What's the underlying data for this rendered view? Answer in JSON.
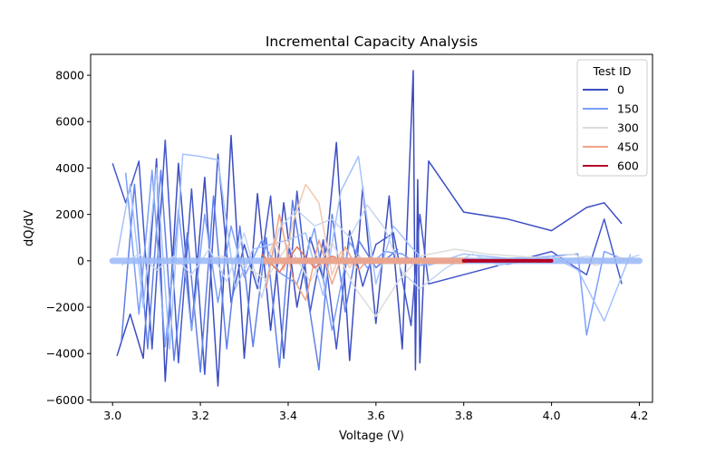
{
  "chart_data": {
    "type": "line",
    "title": "Incremental Capacity Analysis",
    "xlabel": "Voltage (V)",
    "ylabel": "dQ/dV",
    "xlim": [
      2.95,
      4.23
    ],
    "ylim": [
      -6100,
      8900
    ],
    "xticks": [
      3.0,
      3.2,
      3.4,
      3.6,
      3.8,
      4.0,
      4.2
    ],
    "xtick_labels": [
      "3.0",
      "3.2",
      "3.4",
      "3.6",
      "3.8",
      "4.0",
      "4.2"
    ],
    "yticks": [
      -6000,
      -4000,
      -2000,
      0,
      2000,
      4000,
      6000,
      8000
    ],
    "ytick_labels": [
      "−6000",
      "−4000",
      "−2000",
      "0",
      "2000",
      "4000",
      "6000",
      "8000"
    ],
    "grid": false,
    "legend": {
      "title": "Test ID",
      "placement": "top-right",
      "entries": [
        {
          "label": "0",
          "color": "#3b4cc0"
        },
        {
          "label": "150",
          "color": "#7b9ff9"
        },
        {
          "label": "300",
          "color": "#dddcdc"
        },
        {
          "label": "450",
          "color": "#f2a384"
        },
        {
          "label": "600",
          "color": "#b40426"
        }
      ]
    },
    "series": [
      {
        "color": "#3b4cc0",
        "x": [
          3.01,
          3.04,
          3.07,
          3.1,
          3.12,
          3.15,
          3.18,
          3.21,
          3.24,
          3.27,
          3.3,
          3.33,
          3.36,
          3.39,
          3.42,
          3.45,
          3.48,
          3.51,
          3.54,
          3.57,
          3.6,
          3.63,
          3.66,
          3.685,
          3.69,
          3.695,
          3.7,
          3.72,
          3.8,
          3.9,
          4.0,
          4.08,
          4.12,
          4.16
        ],
        "y": [
          -4100,
          -2300,
          -4200,
          4400,
          -5200,
          4200,
          -3000,
          3600,
          -5400,
          5400,
          -4200,
          2900,
          -3000,
          2500,
          -2000,
          1000,
          -800,
          5100,
          -4300,
          3200,
          -2700,
          2800,
          -3800,
          8200,
          -4700,
          3500,
          -4400,
          4300,
          2100,
          1800,
          1300,
          2300,
          2500,
          1600
        ]
      },
      {
        "color": "#4358cb",
        "x": [
          3.0,
          3.03,
          3.06,
          3.09,
          3.12,
          3.15,
          3.18,
          3.21,
          3.24,
          3.27,
          3.3,
          3.33,
          3.36,
          3.39,
          3.42,
          3.45,
          3.48,
          3.51,
          3.54,
          3.57,
          3.6,
          3.64,
          3.68,
          3.7,
          3.72,
          4.0,
          4.08,
          4.12,
          4.16
        ],
        "y": [
          4200,
          2500,
          4300,
          -3800,
          5200,
          -4400,
          3100,
          -4900,
          4600,
          -1800,
          700,
          -1200,
          2800,
          -4200,
          3000,
          -2200,
          900,
          -3800,
          1300,
          -1100,
          700,
          1200,
          -2800,
          2000,
          -1000,
          400,
          -600,
          1800,
          -1000
        ]
      },
      {
        "color": "#5f7fe8",
        "x": [
          3.02,
          3.05,
          3.08,
          3.11,
          3.14,
          3.17,
          3.2,
          3.23,
          3.26,
          3.29,
          3.32,
          3.35,
          3.38,
          3.41,
          3.44,
          3.47,
          3.5,
          3.53,
          3.56,
          3.6,
          3.65
        ],
        "y": [
          -3500,
          3300,
          -3800,
          3900,
          -4300,
          1200,
          -4800,
          2800,
          -3800,
          1500,
          -3700,
          1000,
          -4600,
          2600,
          -1000,
          -4700,
          2000,
          -2200,
          900,
          -300,
          500
        ]
      },
      {
        "color": "#7b9ff9",
        "x": [
          3.03,
          3.06,
          3.09,
          3.12,
          3.15,
          3.18,
          3.21,
          3.24,
          3.27,
          3.3,
          3.34,
          3.38,
          3.42,
          3.46,
          3.5,
          3.54,
          3.58,
          3.62,
          3.66,
          3.7,
          3.8,
          3.9,
          4.0,
          4.06,
          4.08,
          4.12,
          4.16
        ],
        "y": [
          3800,
          -2300,
          3900,
          -3700,
          2200,
          -3000,
          2000,
          -1800,
          1500,
          -700,
          900,
          -500,
          -1000,
          1400,
          -3000,
          800,
          -300,
          400,
          300,
          -200,
          100,
          -150,
          200,
          300,
          -3200,
          400,
          100
        ]
      },
      {
        "color": "#a5c2fe",
        "x": [
          3.01,
          3.04,
          3.07,
          3.1,
          3.13,
          3.16,
          3.2,
          3.24,
          3.28,
          3.32,
          3.36,
          3.4,
          3.44,
          3.48,
          3.52,
          3.56,
          3.6,
          3.64,
          3.68,
          3.72,
          3.8,
          3.9,
          4.0,
          4.06,
          4.12,
          4.18
        ],
        "y": [
          200,
          3300,
          -2000,
          4000,
          -3800,
          4600,
          4500,
          4350,
          -1200,
          500,
          700,
          900,
          1200,
          -1500,
          3000,
          4500,
          -1000,
          1500,
          600,
          -200,
          300,
          100,
          200,
          -400,
          -2600,
          300
        ]
      },
      {
        "color": "#c5d6f2",
        "x": [
          3.02,
          3.06,
          3.1,
          3.14,
          3.18,
          3.22,
          3.26,
          3.3,
          3.34,
          3.38,
          3.42,
          3.46,
          3.5,
          3.54,
          3.58,
          3.62,
          3.66,
          3.7,
          3.76,
          3.82,
          3.88,
          3.94,
          4.0,
          4.08,
          4.14,
          4.2
        ],
        "y": [
          -200,
          300,
          -400,
          200,
          -600,
          500,
          -900,
          1200,
          -1600,
          1400,
          2200,
          1500,
          1800,
          1000,
          2400,
          1400,
          -500,
          -1200,
          -300,
          300,
          -200,
          150,
          -100,
          200,
          -100,
          250
        ]
      },
      {
        "color": "#dddcdc",
        "x": [
          3.05,
          3.15,
          3.25,
          3.3,
          3.35,
          3.4,
          3.45,
          3.5,
          3.55,
          3.6,
          3.65,
          3.7,
          3.78,
          3.85,
          3.92,
          4.0,
          4.05,
          4.1,
          4.15,
          4.2
        ],
        "y": [
          100,
          -150,
          200,
          -200,
          -800,
          700,
          -900,
          800,
          -1100,
          -2400,
          -900,
          200,
          500,
          300,
          200,
          100,
          300,
          -200,
          150,
          0
        ]
      },
      {
        "color": "#f2c8b0",
        "x": [
          3.35,
          3.37,
          3.39,
          3.41,
          3.44,
          3.47,
          3.5,
          3.52,
          3.54,
          3.56,
          3.58
        ],
        "y": [
          -200,
          1000,
          -400,
          1600,
          3300,
          2500,
          -600,
          400,
          -300,
          200,
          -100
        ]
      },
      {
        "color": "#f2a384",
        "x": [
          3.35,
          3.38,
          3.41,
          3.44,
          3.47,
          3.5,
          3.53,
          3.56,
          3.59
        ],
        "y": [
          -1200,
          2000,
          -700,
          -1700,
          900,
          -1000,
          600,
          -400,
          200
        ]
      },
      {
        "color": "#e7745b",
        "x": [
          3.34,
          3.38,
          3.42,
          3.46,
          3.5,
          3.54,
          3.58
        ],
        "y": [
          300,
          -500,
          600,
          -300,
          200,
          -100,
          50
        ]
      },
      {
        "color": "#c9382b",
        "x": [
          3.8,
          3.84,
          3.88,
          3.92,
          3.96,
          4.0
        ],
        "y": [
          10,
          -20,
          30,
          -10,
          20,
          0
        ]
      },
      {
        "color": "#b40426",
        "x": [
          3.8,
          3.84,
          3.88,
          3.92,
          3.96,
          4.0
        ],
        "y": [
          20,
          40,
          30,
          50,
          20,
          30
        ]
      }
    ]
  }
}
